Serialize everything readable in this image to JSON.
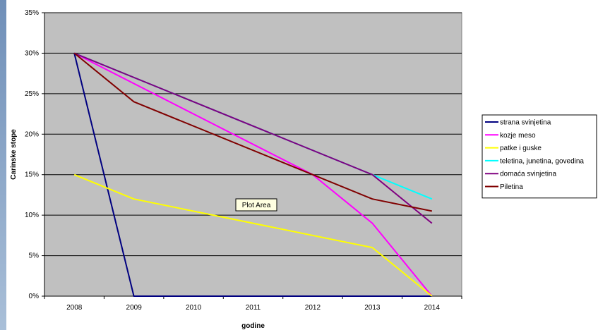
{
  "chart_data": {
    "type": "line",
    "xlabel": "godine",
    "ylabel": "Carinske stope",
    "x": [
      "2008",
      "2009",
      "2010",
      "2011",
      "2012",
      "2013",
      "2014"
    ],
    "y_ticks": [
      "0%",
      "5%",
      "10%",
      "15%",
      "20%",
      "25%",
      "30%",
      "35%"
    ],
    "ylim": [
      0,
      35
    ],
    "grid": true,
    "legend_position": "right",
    "plot_background": "#c0c0c0",
    "tooltip": "Plot Area",
    "series": [
      {
        "name": "strana svinjetina",
        "color": "#000080",
        "points": [
          [
            2008,
            30
          ],
          [
            2009,
            0
          ],
          [
            2014,
            0
          ]
        ]
      },
      {
        "name": "kozje meso",
        "color": "#ff00ff",
        "points": [
          [
            2008,
            30
          ],
          [
            2012,
            15
          ],
          [
            2013,
            9
          ],
          [
            2014,
            0
          ]
        ]
      },
      {
        "name": "patke i guske",
        "color": "#ffff00",
        "points": [
          [
            2008,
            15
          ],
          [
            2009,
            12
          ],
          [
            2013,
            6
          ],
          [
            2014,
            0
          ]
        ]
      },
      {
        "name": "teletina, junetina, govedina",
        "color": "#00ffff",
        "points": [
          [
            2008,
            30
          ],
          [
            2013,
            15
          ],
          [
            2014,
            12
          ]
        ]
      },
      {
        "name": "domaća svinjetina",
        "color": "#800080",
        "points": [
          [
            2008,
            30
          ],
          [
            2013,
            15
          ],
          [
            2014,
            9
          ]
        ]
      },
      {
        "name": "Piletina",
        "color": "#800000",
        "points": [
          [
            2008,
            30
          ],
          [
            2009,
            24
          ],
          [
            2012,
            15
          ],
          [
            2013,
            12
          ],
          [
            2014,
            10.5
          ]
        ]
      }
    ]
  }
}
